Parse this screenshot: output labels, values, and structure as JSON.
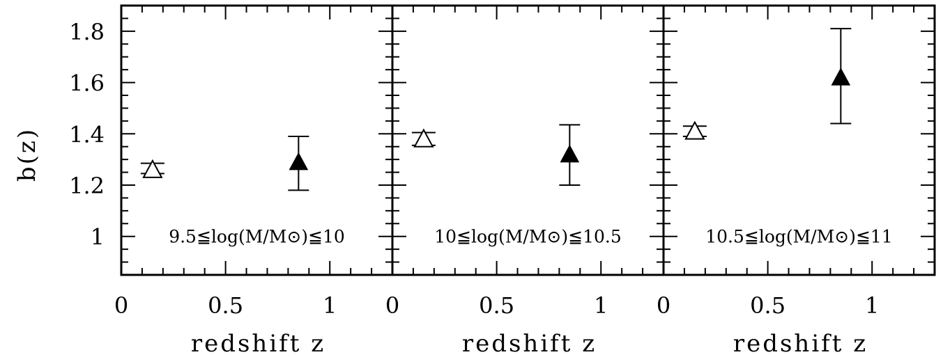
{
  "chart_data": {
    "type": "scatter",
    "ylabel": "b(z)",
    "ylim": [
      0.85,
      1.9
    ],
    "yticks": [
      "1",
      "1.2",
      "1.4",
      "1.6",
      "1.8"
    ],
    "grid": false,
    "panels": [
      {
        "label": "9.5≦log(M/M⊙)≦10",
        "xlabel": "redshift z",
        "xlim": [
          0,
          1.3
        ],
        "xticks": [
          "0",
          "0.5",
          "1"
        ],
        "points": [
          {
            "x": 0.15,
            "y": 1.26,
            "err_low": 1.245,
            "err_high": 1.285,
            "marker": "open-triangle"
          },
          {
            "x": 0.85,
            "y": 1.29,
            "err_low": 1.18,
            "err_high": 1.39,
            "marker": "filled-triangle"
          }
        ]
      },
      {
        "label": "10≦log(M/M⊙)≦10.5",
        "xlabel": "redshift z",
        "xlim": [
          0,
          1.3
        ],
        "xticks": [
          "0",
          "0.5",
          "1"
        ],
        "points": [
          {
            "x": 0.15,
            "y": 1.38,
            "err_low": 1.355,
            "err_high": 1.405,
            "marker": "open-triangle"
          },
          {
            "x": 0.85,
            "y": 1.32,
            "err_low": 1.2,
            "err_high": 1.435,
            "marker": "filled-triangle"
          }
        ]
      },
      {
        "label": "10.5≦log(M/M⊙)≦11",
        "xlabel": "redshift z",
        "xlim": [
          0,
          1.3
        ],
        "xticks": [
          "0",
          "0.5",
          "1"
        ],
        "points": [
          {
            "x": 0.15,
            "y": 1.41,
            "err_low": 1.39,
            "err_high": 1.43,
            "marker": "open-triangle"
          },
          {
            "x": 0.85,
            "y": 1.62,
            "err_low": 1.44,
            "err_high": 1.81,
            "marker": "filled-triangle"
          }
        ]
      }
    ]
  }
}
